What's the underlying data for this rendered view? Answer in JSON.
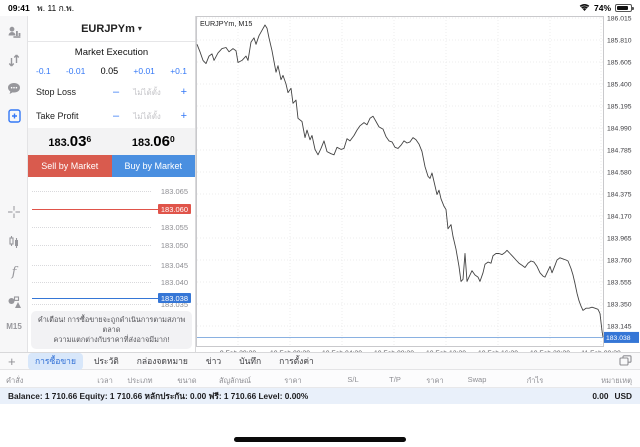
{
  "status_bar": {
    "time": "09:41",
    "date": "พ. 11 ก.พ.",
    "battery_percent": "74%"
  },
  "rail": {
    "icons": [
      "quotes-icon",
      "trade-arrows-icon",
      "chat-icon",
      "new-order-icon",
      "crosshair-icon",
      "candles-icon",
      "indicators-icon",
      "objects-icon"
    ],
    "timeframe": "M15"
  },
  "order_panel": {
    "symbol": "EURJPYm",
    "caret": "▾",
    "mode": "Market Execution",
    "volume": {
      "dec_big": "-0.1",
      "dec": "-0.01",
      "value": "0.05",
      "inc": "+0.01",
      "inc_big": "+0.1"
    },
    "stop_loss": {
      "label": "Stop Loss",
      "minus": "–",
      "placeholder": "ไม่ได้ตั้ง",
      "plus": "+"
    },
    "take_profit": {
      "label": "Take Profit",
      "minus": "–",
      "placeholder": "ไม่ได้ตั้ง",
      "plus": "+"
    },
    "bid": {
      "prefix": "183.",
      "big": "03",
      "sup": "6"
    },
    "ask": {
      "prefix": "183.",
      "big": "06",
      "sup": "0"
    },
    "sell_label": "Sell by Market",
    "buy_label": "Buy by Market",
    "ladder": {
      "rows": [
        "183.065",
        "183.060",
        "183.055",
        "183.050",
        "183.045",
        "183.040"
      ],
      "red_row_price": "183.060",
      "hidden_row": "183.035",
      "current": "183.038"
    },
    "warning_line1": "คำเตือน! การซื้อขายจะถูกดำเนินการตามสภาพตลาด",
    "warning_line2": "ความแตกต่างกับราคาที่ส่งอาจมีมาก!"
  },
  "chart_data": {
    "type": "line",
    "title": "EURJPYm, M15",
    "ylim": [
      183.03,
      186.06
    ],
    "grid": true,
    "y_ticks": [
      "186.015",
      "185.810",
      "185.605",
      "185.400",
      "185.195",
      "184.990",
      "184.785",
      "184.580",
      "184.375",
      "184.170",
      "183.965",
      "183.760",
      "183.555",
      "183.350",
      "183.145"
    ],
    "x_ticks": [
      "9 Feb 20:30",
      "10 Feb 00:30",
      "10 Feb 04:30",
      "10 Feb 08:30",
      "10 Feb 12:30",
      "10 Feb 16:30",
      "10 Feb 20:30",
      "11 Feb 00:30"
    ],
    "current_price": 183.038,
    "current_price_label": "183.038",
    "points": [
      [
        1,
        185.77
      ],
      [
        4,
        185.7
      ],
      [
        7,
        185.62
      ],
      [
        10,
        185.59
      ],
      [
        13,
        185.66
      ],
      [
        16,
        185.68
      ],
      [
        18,
        185.62
      ],
      [
        22,
        185.69
      ],
      [
        26,
        185.73
      ],
      [
        30,
        185.74
      ],
      [
        33,
        185.7
      ],
      [
        37,
        185.73
      ],
      [
        40,
        185.71
      ],
      [
        42,
        185.6
      ],
      [
        46,
        185.62
      ],
      [
        50,
        185.66
      ],
      [
        52,
        185.62
      ],
      [
        55,
        185.79
      ],
      [
        58,
        185.83
      ],
      [
        60,
        185.77
      ],
      [
        63,
        185.85
      ],
      [
        66,
        185.9
      ],
      [
        69,
        185.95
      ],
      [
        71,
        185.92
      ],
      [
        73,
        185.83
      ],
      [
        76,
        185.71
      ],
      [
        78,
        185.61
      ],
      [
        80,
        185.51
      ],
      [
        82,
        185.57
      ],
      [
        85,
        185.44
      ],
      [
        87,
        185.48
      ],
      [
        90,
        185.4
      ],
      [
        92,
        185.32
      ],
      [
        95,
        185.36
      ],
      [
        97,
        185.22
      ],
      [
        100,
        185.25
      ],
      [
        102,
        185.08
      ],
      [
        106,
        185.05
      ],
      [
        109,
        184.9
      ],
      [
        111,
        184.97
      ],
      [
        114,
        184.88
      ],
      [
        116,
        184.92
      ],
      [
        119,
        184.79
      ],
      [
        122,
        184.74
      ],
      [
        125,
        184.8
      ],
      [
        128,
        184.87
      ],
      [
        131,
        184.77
      ],
      [
        135,
        184.75
      ],
      [
        138,
        184.74
      ],
      [
        141,
        184.81
      ],
      [
        145,
        184.79
      ],
      [
        148,
        184.8
      ],
      [
        151,
        184.89
      ],
      [
        154,
        184.87
      ],
      [
        158,
        184.92
      ],
      [
        161,
        184.97
      ],
      [
        164,
        185.01
      ],
      [
        168,
        185.04
      ],
      [
        171,
        185.02
      ],
      [
        174,
        185.08
      ],
      [
        177,
        185.1
      ],
      [
        180,
        185.05
      ],
      [
        183,
        185.0
      ],
      [
        187,
        184.98
      ],
      [
        190,
        184.91
      ],
      [
        193,
        184.87
      ],
      [
        196,
        184.86
      ],
      [
        199,
        184.81
      ],
      [
        202,
        184.8
      ],
      [
        205,
        184.83
      ],
      [
        208,
        184.87
      ],
      [
        211,
        184.85
      ],
      [
        214,
        184.86
      ],
      [
        217,
        184.9
      ],
      [
        220,
        184.88
      ],
      [
        223,
        184.84
      ],
      [
        226,
        184.77
      ],
      [
        229,
        184.63
      ],
      [
        232,
        184.54
      ],
      [
        234,
        184.52
      ],
      [
        236,
        184.57
      ],
      [
        239,
        184.45
      ],
      [
        241,
        184.37
      ],
      [
        243,
        184.41
      ],
      [
        245,
        184.33
      ],
      [
        248,
        184.26
      ],
      [
        250,
        184.23
      ],
      [
        252,
        184.05
      ],
      [
        255,
        184.09
      ],
      [
        257,
        183.98
      ],
      [
        260,
        183.86
      ],
      [
        263,
        183.7
      ],
      [
        265,
        183.56
      ],
      [
        267,
        183.58
      ],
      [
        269,
        183.82
      ],
      [
        271,
        183.56
      ],
      [
        273,
        183.6
      ],
      [
        276,
        183.66
      ],
      [
        279,
        183.62
      ],
      [
        282,
        183.6
      ],
      [
        284,
        183.56
      ],
      [
        287,
        183.64
      ],
      [
        289,
        183.72
      ],
      [
        292,
        183.74
      ],
      [
        295,
        183.73
      ],
      [
        297,
        183.8
      ],
      [
        300,
        183.82
      ],
      [
        303,
        183.82
      ],
      [
        306,
        183.81
      ],
      [
        309,
        183.83
      ],
      [
        311,
        183.85
      ],
      [
        314,
        183.82
      ],
      [
        317,
        183.79
      ],
      [
        320,
        183.76
      ],
      [
        323,
        183.73
      ],
      [
        326,
        183.71
      ],
      [
        329,
        183.69
      ],
      [
        332,
        183.73
      ],
      [
        335,
        183.75
      ],
      [
        338,
        183.74
      ],
      [
        341,
        183.7
      ],
      [
        344,
        183.64
      ],
      [
        347,
        183.61
      ],
      [
        349,
        183.6
      ],
      [
        352,
        183.66
      ],
      [
        354,
        183.7
      ],
      [
        356,
        183.64
      ],
      [
        359,
        183.71
      ],
      [
        361,
        183.76
      ],
      [
        364,
        183.78
      ],
      [
        367,
        183.77
      ],
      [
        370,
        183.76
      ],
      [
        372,
        183.75
      ],
      [
        375,
        183.68
      ],
      [
        377,
        183.62
      ],
      [
        379,
        183.54
      ],
      [
        381,
        183.45
      ],
      [
        383,
        183.38
      ],
      [
        385,
        183.33
      ],
      [
        387,
        183.29
      ],
      [
        390,
        183.31
      ],
      [
        393,
        183.31
      ],
      [
        396,
        183.32
      ],
      [
        399,
        183.31
      ],
      [
        402,
        183.3
      ],
      [
        404,
        183.26
      ],
      [
        405,
        183.18
      ],
      [
        406,
        183.1
      ],
      [
        407,
        183.04
      ]
    ]
  },
  "bottom": {
    "plus": "+",
    "tabs": [
      {
        "label": "การซื้อขาย",
        "selected": true
      },
      {
        "label": "ประวัติ",
        "selected": false
      },
      {
        "label": "กล่องจดหมาย",
        "selected": false
      },
      {
        "label": "ข่าว",
        "selected": false
      },
      {
        "label": "บันทึก",
        "selected": false
      },
      {
        "label": "การตั้งค่า",
        "selected": false
      }
    ],
    "table_headers": [
      "คำสั่ง",
      "เวลา",
      "ประเภท",
      "ขนาด",
      "สัญลักษณ์",
      "ราคา",
      "S/L",
      "T/P",
      "ราคา",
      "Swap",
      "กำไร",
      "หมายเหตุ"
    ],
    "balance_line": "Balance: 1 710.66 Equity: 1 710.66 หลักประกัน: 0.00 ฟรี: 1 710.66 Level: 0.00%",
    "profit": "0.00",
    "currency": "USD"
  },
  "colors": {
    "accent_blue": "#3478f6",
    "sell_red": "#d95b4e",
    "buy_blue": "#4a8fe0",
    "tag_red": "#e0544a",
    "tag_blue": "#3576d6",
    "selected_tab_bg": "#d8e7fa",
    "balance_bg": "#e9f0fa",
    "chart_line": "#444444"
  }
}
